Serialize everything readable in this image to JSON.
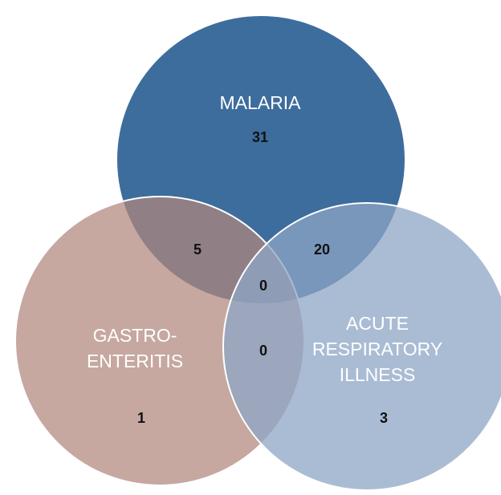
{
  "sets": [
    {
      "label_lines": [
        "MALARIA"
      ],
      "count": 31
    },
    {
      "label_lines": [
        "GASTRO-",
        "ENTERITIS"
      ],
      "count": 1
    },
    {
      "label_lines": [
        "ACUTE",
        "RESPIRATORY",
        "ILLNESS"
      ],
      "count": 3
    }
  ],
  "intersections": [
    {
      "sets": [
        0,
        1
      ],
      "count": 5
    },
    {
      "sets": [
        0,
        2
      ],
      "count": 20
    },
    {
      "sets": [
        0,
        1,
        2
      ],
      "count": 0
    },
    {
      "sets": [
        1,
        2
      ],
      "count": 0
    }
  ]
}
